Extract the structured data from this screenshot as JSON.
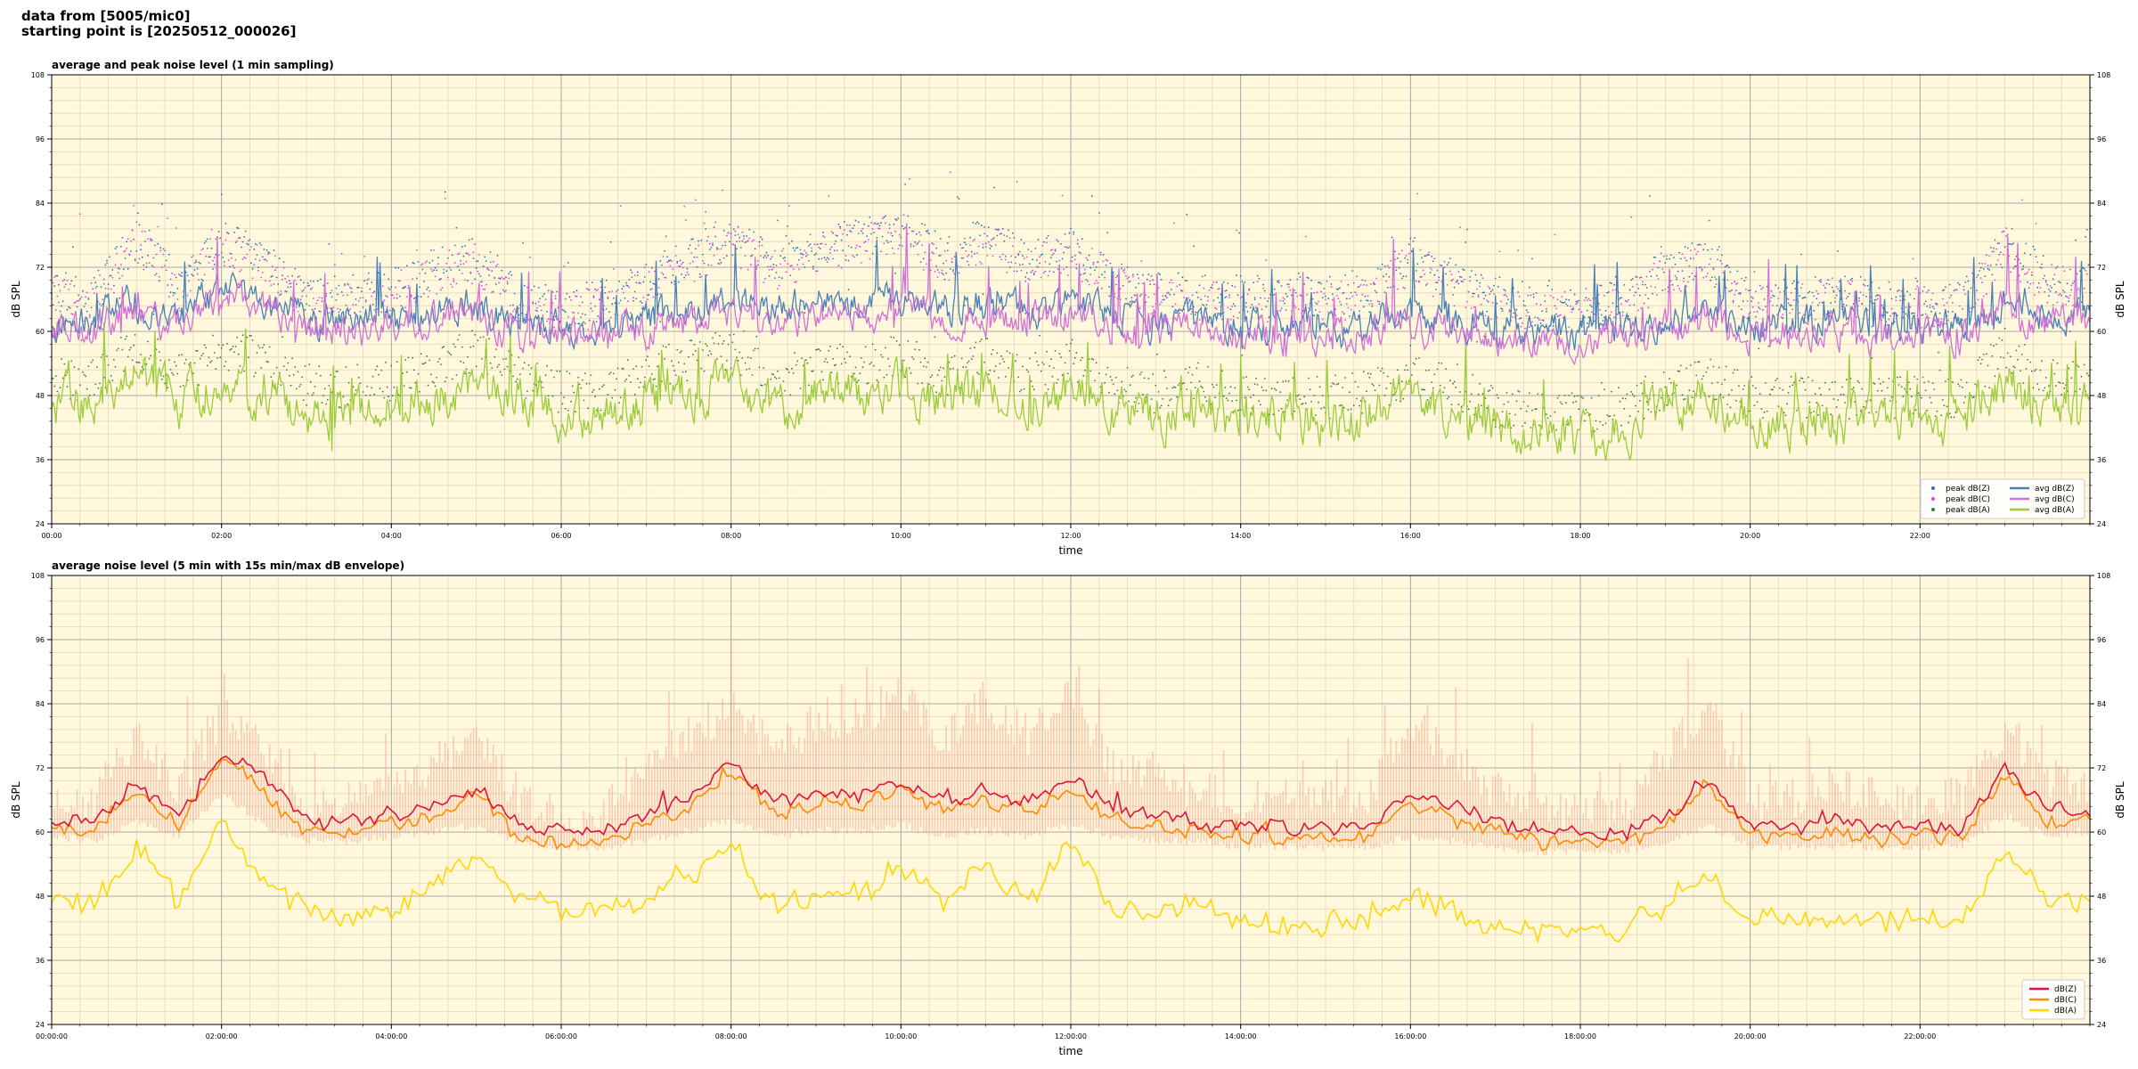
{
  "header": {
    "line1": "data from [5005/mic0]",
    "line2": "starting point is [20250512_000026]"
  },
  "colors": {
    "plot_bg": "#fff8dc",
    "grid_major": "#a9a9a9",
    "grid_minor": "#e2d9b8",
    "peak_z": "#1f77b4",
    "peak_c": "#e040e0",
    "peak_a": "#3c7a3c",
    "avg_z": "#4a7fb8",
    "avg_c": "#d070d8",
    "avg_a": "#9ccc3c",
    "env": "#f3a08a",
    "z5": "#dc143c",
    "c5": "#ff8c00",
    "a5": "#ffd700"
  },
  "chart_data": [
    {
      "type": "line",
      "title": "average and peak noise level (1 min sampling)",
      "xlabel": "time",
      "ylabel": "dB SPL",
      "ylim": [
        24,
        108
      ],
      "xlim_hours": [
        0,
        24
      ],
      "yticks": [
        "24",
        "36",
        "48",
        "60",
        "72",
        "84",
        "96",
        "108"
      ],
      "xticks": [
        "00:00",
        "02:00",
        "04:00",
        "06:00",
        "08:00",
        "10:00",
        "12:00",
        "14:00",
        "16:00",
        "18:00",
        "20:00",
        "22:00"
      ],
      "grid": true,
      "legend_position": "lower-right",
      "legend": [
        {
          "label": "peak dB(Z)",
          "kind": "dot",
          "color_key": "peak_z"
        },
        {
          "label": "peak dB(C)",
          "kind": "dot",
          "color_key": "peak_c"
        },
        {
          "label": "peak dB(A)",
          "kind": "dot",
          "color_key": "peak_a"
        },
        {
          "label": "avg dB(Z)",
          "kind": "line",
          "color_key": "avg_z"
        },
        {
          "label": "avg dB(C)",
          "kind": "line",
          "color_key": "avg_c"
        },
        {
          "label": "avg dB(A)",
          "kind": "line",
          "color_key": "avg_a"
        }
      ],
      "hours": [
        0,
        0.5,
        1,
        1.5,
        2,
        2.5,
        3,
        3.5,
        4,
        4.5,
        5,
        5.5,
        6,
        6.5,
        7,
        7.5,
        8,
        8.5,
        9,
        9.5,
        10,
        10.5,
        11,
        11.5,
        12,
        12.5,
        13,
        13.5,
        14,
        14.5,
        15,
        15.5,
        16,
        16.5,
        17,
        17.5,
        18,
        18.5,
        19,
        19.5,
        20,
        20.5,
        21,
        21.5,
        22,
        22.5,
        23,
        23.5,
        24
      ],
      "series": [
        {
          "name": "avg dB(Z)",
          "values": [
            62,
            62,
            66,
            63,
            67,
            66,
            62,
            62,
            63,
            64,
            64,
            61,
            60,
            60,
            62,
            64,
            66,
            64,
            65,
            65,
            66,
            64,
            65,
            64,
            65,
            63,
            62,
            61,
            61,
            61,
            61,
            61,
            63,
            62,
            61,
            60,
            60,
            60,
            62,
            64,
            61,
            61,
            62,
            61,
            61,
            61,
            65,
            63,
            63
          ]
        },
        {
          "name": "avg dB(C)",
          "values": [
            61,
            60,
            64,
            61,
            66,
            65,
            60,
            60,
            61,
            62,
            63,
            59,
            59,
            59,
            60,
            62,
            64,
            62,
            63,
            63,
            64,
            62,
            63,
            62,
            63,
            61,
            60,
            60,
            59,
            59,
            59,
            59,
            61,
            60,
            59,
            58,
            58,
            58,
            60,
            62,
            59,
            59,
            60,
            59,
            59,
            59,
            64,
            61,
            62
          ]
        },
        {
          "name": "avg dB(A)",
          "values": [
            47,
            46,
            52,
            47,
            51,
            48,
            45,
            45,
            46,
            48,
            50,
            47,
            45,
            44,
            47,
            49,
            50,
            45,
            48,
            48,
            50,
            46,
            50,
            46,
            49,
            45,
            44,
            46,
            43,
            43,
            43,
            44,
            47,
            45,
            42,
            41,
            41,
            41,
            45,
            47,
            43,
            43,
            43,
            43,
            43,
            43,
            51,
            46,
            47
          ]
        },
        {
          "name": "peak dB(Z)",
          "values": [
            66,
            65,
            76,
            67,
            75,
            72,
            65,
            65,
            66,
            70,
            72,
            64,
            63,
            64,
            68,
            72,
            76,
            71,
            74,
            76,
            78,
            72,
            76,
            72,
            74,
            68,
            66,
            65,
            65,
            65,
            65,
            65,
            72,
            68,
            65,
            63,
            63,
            64,
            70,
            72,
            64,
            64,
            66,
            64,
            64,
            64,
            75,
            68,
            67
          ]
        },
        {
          "name": "peak dB(C)",
          "values": [
            65,
            64,
            75,
            66,
            74,
            71,
            64,
            64,
            65,
            69,
            71,
            63,
            62,
            63,
            67,
            71,
            75,
            70,
            73,
            75,
            77,
            71,
            75,
            71,
            73,
            67,
            65,
            64,
            64,
            64,
            64,
            64,
            71,
            67,
            64,
            62,
            62,
            63,
            69,
            71,
            63,
            63,
            65,
            63,
            63,
            63,
            74,
            67,
            66
          ]
        },
        {
          "name": "peak dB(A)",
          "values": [
            50,
            49,
            56,
            50,
            55,
            53,
            48,
            48,
            49,
            52,
            55,
            50,
            47,
            47,
            51,
            53,
            55,
            49,
            52,
            52,
            54,
            50,
            54,
            50,
            53,
            48,
            47,
            49,
            46,
            46,
            46,
            47,
            50,
            48,
            44,
            43,
            43,
            44,
            48,
            50,
            46,
            46,
            46,
            46,
            46,
            46,
            55,
            49,
            50
          ]
        }
      ]
    },
    {
      "type": "line",
      "title": "average noise level (5 min with 15s min/max dB envelope)",
      "xlabel": "time",
      "ylabel": "dB SPL",
      "ylim": [
        24,
        108
      ],
      "xlim_hours": [
        0,
        24
      ],
      "yticks": [
        "24",
        "36",
        "48",
        "60",
        "72",
        "84",
        "96",
        "108"
      ],
      "xticks": [
        "00:00:00",
        "02:00:00",
        "04:00:00",
        "06:00:00",
        "08:00:00",
        "10:00:00",
        "12:00:00",
        "14:00:00",
        "16:00:00",
        "18:00:00",
        "20:00:00",
        "22:00:00"
      ],
      "grid": true,
      "legend_position": "lower-right",
      "legend": [
        {
          "label": "dB(Z)",
          "kind": "line",
          "color_key": "z5"
        },
        {
          "label": "dB(C)",
          "kind": "line",
          "color_key": "c5"
        },
        {
          "label": "dB(A)",
          "kind": "line",
          "color_key": "a5"
        }
      ],
      "hours": [
        0,
        0.5,
        1,
        1.5,
        2,
        2.5,
        3,
        3.5,
        4,
        4.5,
        5,
        5.5,
        6,
        6.5,
        7,
        7.5,
        8,
        8.5,
        9,
        9.5,
        10,
        10.5,
        11,
        11.5,
        12,
        12.5,
        13,
        13.5,
        14,
        14.5,
        15,
        15.5,
        16,
        16.5,
        17,
        17.5,
        18,
        18.5,
        19,
        19.5,
        20,
        20.5,
        21,
        21.5,
        22,
        22.5,
        23,
        23.5,
        24
      ],
      "series": [
        {
          "name": "dB(Z)",
          "values": [
            62,
            62,
            69,
            63,
            75,
            70,
            62,
            62,
            63,
            65,
            68,
            61,
            60,
            60,
            63,
            66,
            73,
            65,
            67,
            67,
            70,
            66,
            68,
            66,
            70,
            64,
            63,
            62,
            61,
            61,
            61,
            61,
            67,
            65,
            62,
            60,
            60,
            60,
            63,
            70,
            61,
            61,
            62,
            61,
            61,
            61,
            72,
            64,
            64
          ]
        },
        {
          "name": "dB(C)",
          "values": [
            61,
            60,
            68,
            61,
            74,
            68,
            60,
            60,
            61,
            63,
            67,
            59,
            58,
            58,
            61,
            64,
            72,
            63,
            65,
            65,
            68,
            64,
            66,
            64,
            68,
            62,
            61,
            60,
            59,
            59,
            59,
            59,
            65,
            63,
            60,
            58,
            58,
            58,
            61,
            69,
            59,
            59,
            60,
            59,
            59,
            59,
            71,
            62,
            62
          ]
        },
        {
          "name": "dB(A)",
          "values": [
            47,
            46,
            57,
            47,
            62,
            50,
            45,
            45,
            46,
            50,
            55,
            48,
            46,
            45,
            48,
            52,
            58,
            46,
            48,
            48,
            54,
            47,
            53,
            47,
            58,
            46,
            45,
            47,
            44,
            43,
            43,
            44,
            48,
            46,
            43,
            41,
            41,
            42,
            46,
            52,
            44,
            44,
            44,
            44,
            44,
            44,
            56,
            47,
            48
          ]
        },
        {
          "name": "envelope min",
          "values": [
            60,
            59,
            63,
            60,
            68,
            62,
            59,
            59,
            60,
            61,
            62,
            59,
            58,
            58,
            59,
            61,
            63,
            60,
            61,
            61,
            62,
            60,
            61,
            60,
            62,
            60,
            59,
            59,
            58,
            58,
            58,
            58,
            60,
            59,
            58,
            57,
            57,
            57,
            59,
            62,
            58,
            58,
            58,
            58,
            58,
            58,
            64,
            60,
            61
          ]
        },
        {
          "name": "envelope max",
          "values": [
            64,
            66,
            78,
            68,
            82,
            76,
            66,
            66,
            67,
            72,
            80,
            65,
            63,
            64,
            72,
            78,
            84,
            75,
            80,
            82,
            85,
            78,
            84,
            78,
            86,
            72,
            70,
            68,
            66,
            66,
            66,
            66,
            80,
            74,
            68,
            64,
            64,
            65,
            74,
            85,
            66,
            66,
            70,
            66,
            66,
            66,
            80,
            70,
            68
          ]
        }
      ]
    }
  ]
}
